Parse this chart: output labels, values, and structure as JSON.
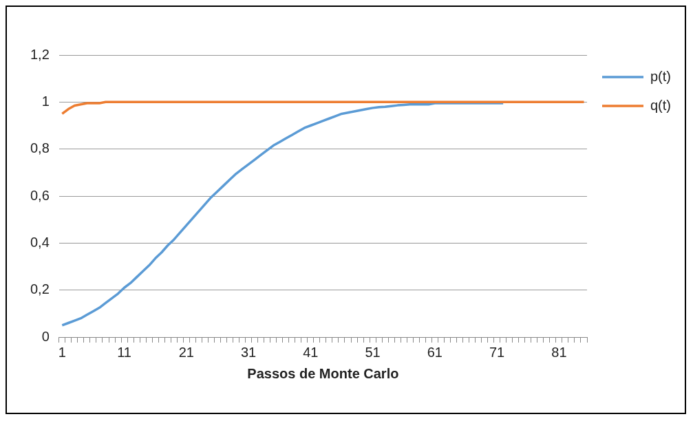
{
  "chart_data": {
    "type": "line",
    "xlabel": "Passos de Monte Carlo",
    "categories": [
      "1",
      null,
      null,
      null,
      null,
      null,
      null,
      null,
      null,
      null,
      "11",
      null,
      null,
      null,
      null,
      null,
      null,
      null,
      null,
      null,
      "21",
      null,
      null,
      null,
      null,
      null,
      null,
      null,
      null,
      null,
      "31",
      null,
      null,
      null,
      null,
      null,
      null,
      null,
      null,
      null,
      "41",
      null,
      null,
      null,
      null,
      null,
      null,
      null,
      null,
      null,
      "51",
      null,
      null,
      null,
      null,
      null,
      null,
      null,
      null,
      null,
      "61",
      null,
      null,
      null,
      null,
      null,
      null,
      null,
      null,
      null,
      "71",
      null,
      null,
      null,
      null,
      null,
      null,
      null,
      null,
      null,
      "81",
      null,
      null,
      null,
      null
    ],
    "series": [
      {
        "name": "p(t)",
        "color": "#5b9bd5",
        "values": [
          0.05,
          0.06,
          0.07,
          0.08,
          0.095,
          0.11,
          0.125,
          0.145,
          0.165,
          0.185,
          0.21,
          0.23,
          0.255,
          0.28,
          0.305,
          0.335,
          0.36,
          0.39,
          0.415,
          0.445,
          0.475,
          0.505,
          0.535,
          0.565,
          0.595,
          0.62,
          0.645,
          0.67,
          0.695,
          0.715,
          0.735,
          0.755,
          0.775,
          0.795,
          0.815,
          0.83,
          0.845,
          0.86,
          0.875,
          0.89,
          0.9,
          0.91,
          0.92,
          0.93,
          0.94,
          0.95,
          0.955,
          0.96,
          0.965,
          0.97,
          0.975,
          0.978,
          0.98,
          0.983,
          0.986,
          0.988,
          0.99,
          0.99,
          0.99,
          0.99,
          0.995,
          0.995,
          0.995,
          0.995,
          0.995,
          0.995,
          0.995,
          0.995,
          0.995,
          0.995,
          0.995,
          0.995,
          null,
          null,
          null,
          null,
          null,
          null,
          null,
          null,
          null,
          null,
          null,
          null,
          null
        ]
      },
      {
        "name": "q(t)",
        "color": "#ed7d31",
        "values": [
          0.95,
          0.97,
          0.985,
          0.99,
          0.995,
          0.995,
          0.995,
          1,
          1,
          1,
          1,
          1,
          1,
          1,
          1,
          1,
          1,
          1,
          1,
          1,
          1,
          1,
          1,
          1,
          1,
          1,
          1,
          1,
          1,
          1,
          1,
          1,
          1,
          1,
          1,
          1,
          1,
          1,
          1,
          1,
          1,
          1,
          1,
          1,
          1,
          1,
          1,
          1,
          1,
          1,
          1,
          1,
          1,
          1,
          1,
          1,
          1,
          1,
          1,
          1,
          1,
          1,
          1,
          1,
          1,
          1,
          1,
          1,
          1,
          1,
          1,
          1,
          1,
          1,
          1,
          1,
          1,
          1,
          1,
          1,
          1,
          1,
          1,
          1,
          1
        ]
      }
    ],
    "ylim": [
      0,
      1.2
    ],
    "yticks": [
      0,
      {
        "value": 0.2,
        "label": "0,2"
      },
      {
        "value": 0.4,
        "label": "0,4"
      },
      {
        "value": 0.6,
        "label": "0,6"
      },
      {
        "value": 0.8,
        "label": "0,8"
      },
      1,
      {
        "value": 1.2,
        "label": "1,2"
      }
    ],
    "grid": "y",
    "legend": "top right",
    "marker": "none",
    "line_style": "solid"
  }
}
